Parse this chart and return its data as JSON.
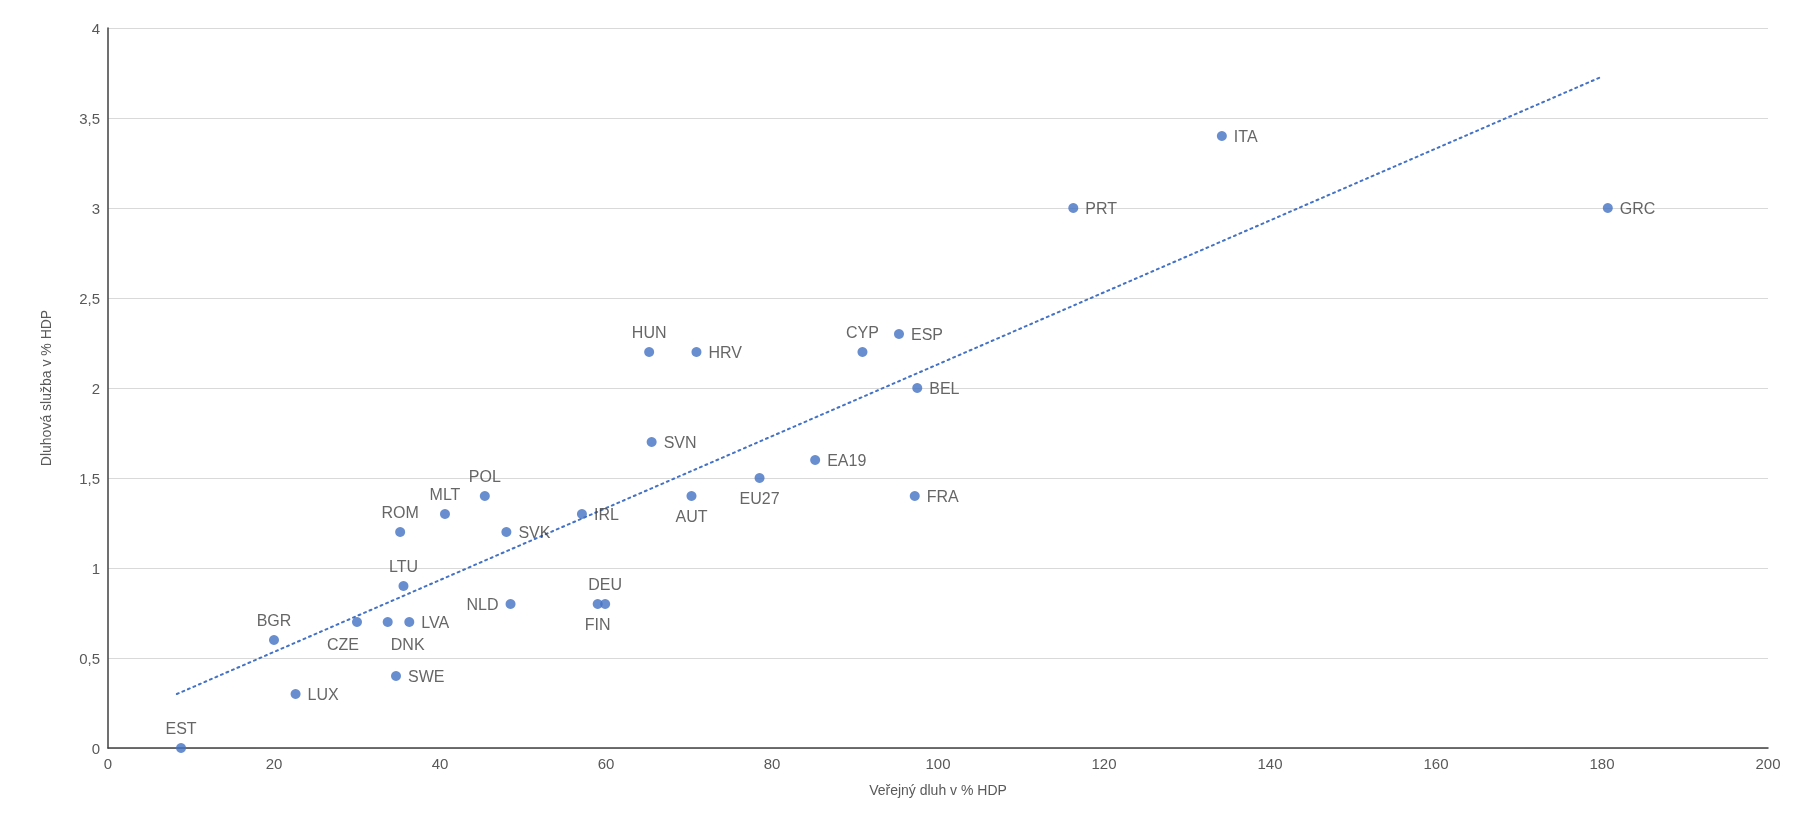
{
  "chart_data": {
    "type": "scatter",
    "xlabel": "Veřejný dluh v % HDP",
    "ylabel": "Dluhová služba v % HDP",
    "xlim": [
      0,
      200
    ],
    "xticks": [
      0,
      20,
      40,
      60,
      80,
      100,
      120,
      140,
      160,
      180,
      200
    ],
    "ylim": [
      0,
      4
    ],
    "yticks": [
      0,
      {
        "value": 0.5,
        "label": "0,5"
      },
      1,
      {
        "value": 1.5,
        "label": "1,5"
      },
      2,
      {
        "value": 2.5,
        "label": "2,5"
      },
      3,
      {
        "value": 3.5,
        "label": "3,5"
      },
      4
    ],
    "grid": "y",
    "marker": "circle",
    "series": [
      {
        "color": "#4472c4",
        "x": [
          8.8,
          22.6,
          34.7,
          20.0,
          30.0,
          33.7,
          36.3,
          35.6,
          35.2,
          40.6,
          45.4,
          48.0,
          48.5,
          59.0,
          59.9,
          57.1,
          65.5,
          65.2,
          70.9,
          70.3,
          78.5,
          85.2,
          90.9,
          95.3,
          97.5,
          97.2,
          116.3,
          134.2,
          180.7
        ],
        "values": [
          0,
          0.3,
          0.4,
          0.6,
          0.7,
          0.7,
          0.7,
          0.9,
          1.2,
          1.3,
          1.4,
          1.2,
          0.8,
          0.8,
          0.8,
          1.3,
          1.7,
          2.2,
          2.2,
          1.4,
          1.5,
          1.6,
          2.2,
          2.3,
          2.0,
          1.4,
          3.0,
          3.4,
          3.0
        ]
      },
      {
        "type": "line",
        "color": "#4472c4",
        "line_style": "dotted",
        "marker": "none",
        "x": [
          8.3,
          180
        ],
        "values": [
          0.3,
          3.73
        ]
      }
    ],
    "annotations": [
      {
        "text": "EST",
        "x": 8.8,
        "y": 0
      },
      {
        "text": "LUX",
        "x": 22.6,
        "y": 0.3
      },
      {
        "text": "SWE",
        "x": 34.7,
        "y": 0.4
      },
      {
        "text": "BGR",
        "x": 20.0,
        "y": 0.6
      },
      {
        "text": "CZE",
        "x": 30.0,
        "y": 0.7
      },
      {
        "text": "DNK",
        "x": 33.7,
        "y": 0.7
      },
      {
        "text": "LVA",
        "x": 36.3,
        "y": 0.7
      },
      {
        "text": "LTU",
        "x": 35.6,
        "y": 0.9
      },
      {
        "text": "ROM",
        "x": 35.2,
        "y": 1.2
      },
      {
        "text": "MLT",
        "x": 40.6,
        "y": 1.3
      },
      {
        "text": "POL",
        "x": 45.4,
        "y": 1.4
      },
      {
        "text": "SVK",
        "x": 48.0,
        "y": 1.2
      },
      {
        "text": "NLD",
        "x": 48.5,
        "y": 0.8
      },
      {
        "text": "FIN",
        "x": 59.0,
        "y": 0.8
      },
      {
        "text": "DEU",
        "x": 59.9,
        "y": 0.8
      },
      {
        "text": "IRL",
        "x": 57.1,
        "y": 1.3
      },
      {
        "text": "SVN",
        "x": 65.5,
        "y": 1.7
      },
      {
        "text": "HUN",
        "x": 65.2,
        "y": 2.2
      },
      {
        "text": "HRV",
        "x": 70.9,
        "y": 2.2
      },
      {
        "text": "AUT",
        "x": 70.3,
        "y": 1.4
      },
      {
        "text": "EU27",
        "x": 78.5,
        "y": 1.5
      },
      {
        "text": "EA19",
        "x": 85.2,
        "y": 1.6
      },
      {
        "text": "CYP",
        "x": 90.9,
        "y": 2.2
      },
      {
        "text": "ESP",
        "x": 95.3,
        "y": 2.3
      },
      {
        "text": "BEL",
        "x": 97.5,
        "y": 2.0
      },
      {
        "text": "FRA",
        "x": 97.2,
        "y": 1.4
      },
      {
        "text": "PRT",
        "x": 116.3,
        "y": 3.0
      },
      {
        "text": "ITA",
        "x": 134.2,
        "y": 3.4
      },
      {
        "text": "GRC",
        "x": 180.7,
        "y": 3.0
      }
    ]
  }
}
